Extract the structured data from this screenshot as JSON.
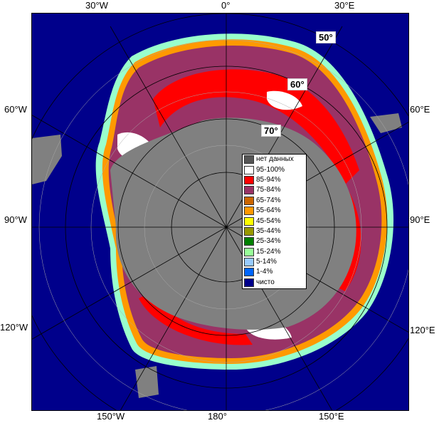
{
  "map": {
    "longitude_labels": {
      "w30": "30°W",
      "lon0": "0°",
      "e30": "30°E",
      "w60": "60°W",
      "e60": "60°E",
      "w90": "90°W",
      "e90": "90°E",
      "w120": "120°W",
      "e120": "120°E",
      "w150": "150°W",
      "lon180": "180°",
      "e150": "150°E"
    },
    "latitude_labels": {
      "lat50": "50°",
      "lat60": "60°",
      "lat70": "70°"
    },
    "colors": {
      "open_water": "#00008b",
      "no_data": "#808080",
      "land_gray": "#7a7a7a"
    }
  },
  "legend": {
    "items": [
      {
        "label": "нет данных",
        "color": "#555555"
      },
      {
        "label": "95-100%",
        "color": "#ffffff"
      },
      {
        "label": "85-94%",
        "color": "#ff0000"
      },
      {
        "label": "75-84%",
        "color": "#993366"
      },
      {
        "label": "65-74%",
        "color": "#cc6600"
      },
      {
        "label": "55-64%",
        "color": "#ff9900"
      },
      {
        "label": "45-54%",
        "color": "#ffff00"
      },
      {
        "label": "35-44%",
        "color": "#999900"
      },
      {
        "label": "25-34%",
        "color": "#008000"
      },
      {
        "label": "15-24%",
        "color": "#99ff99"
      },
      {
        "label": "5-14%",
        "color": "#99ccff"
      },
      {
        "label": "1-4%",
        "color": "#0066ff"
      },
      {
        "label": "чисто",
        "color": "#00008b"
      }
    ]
  }
}
